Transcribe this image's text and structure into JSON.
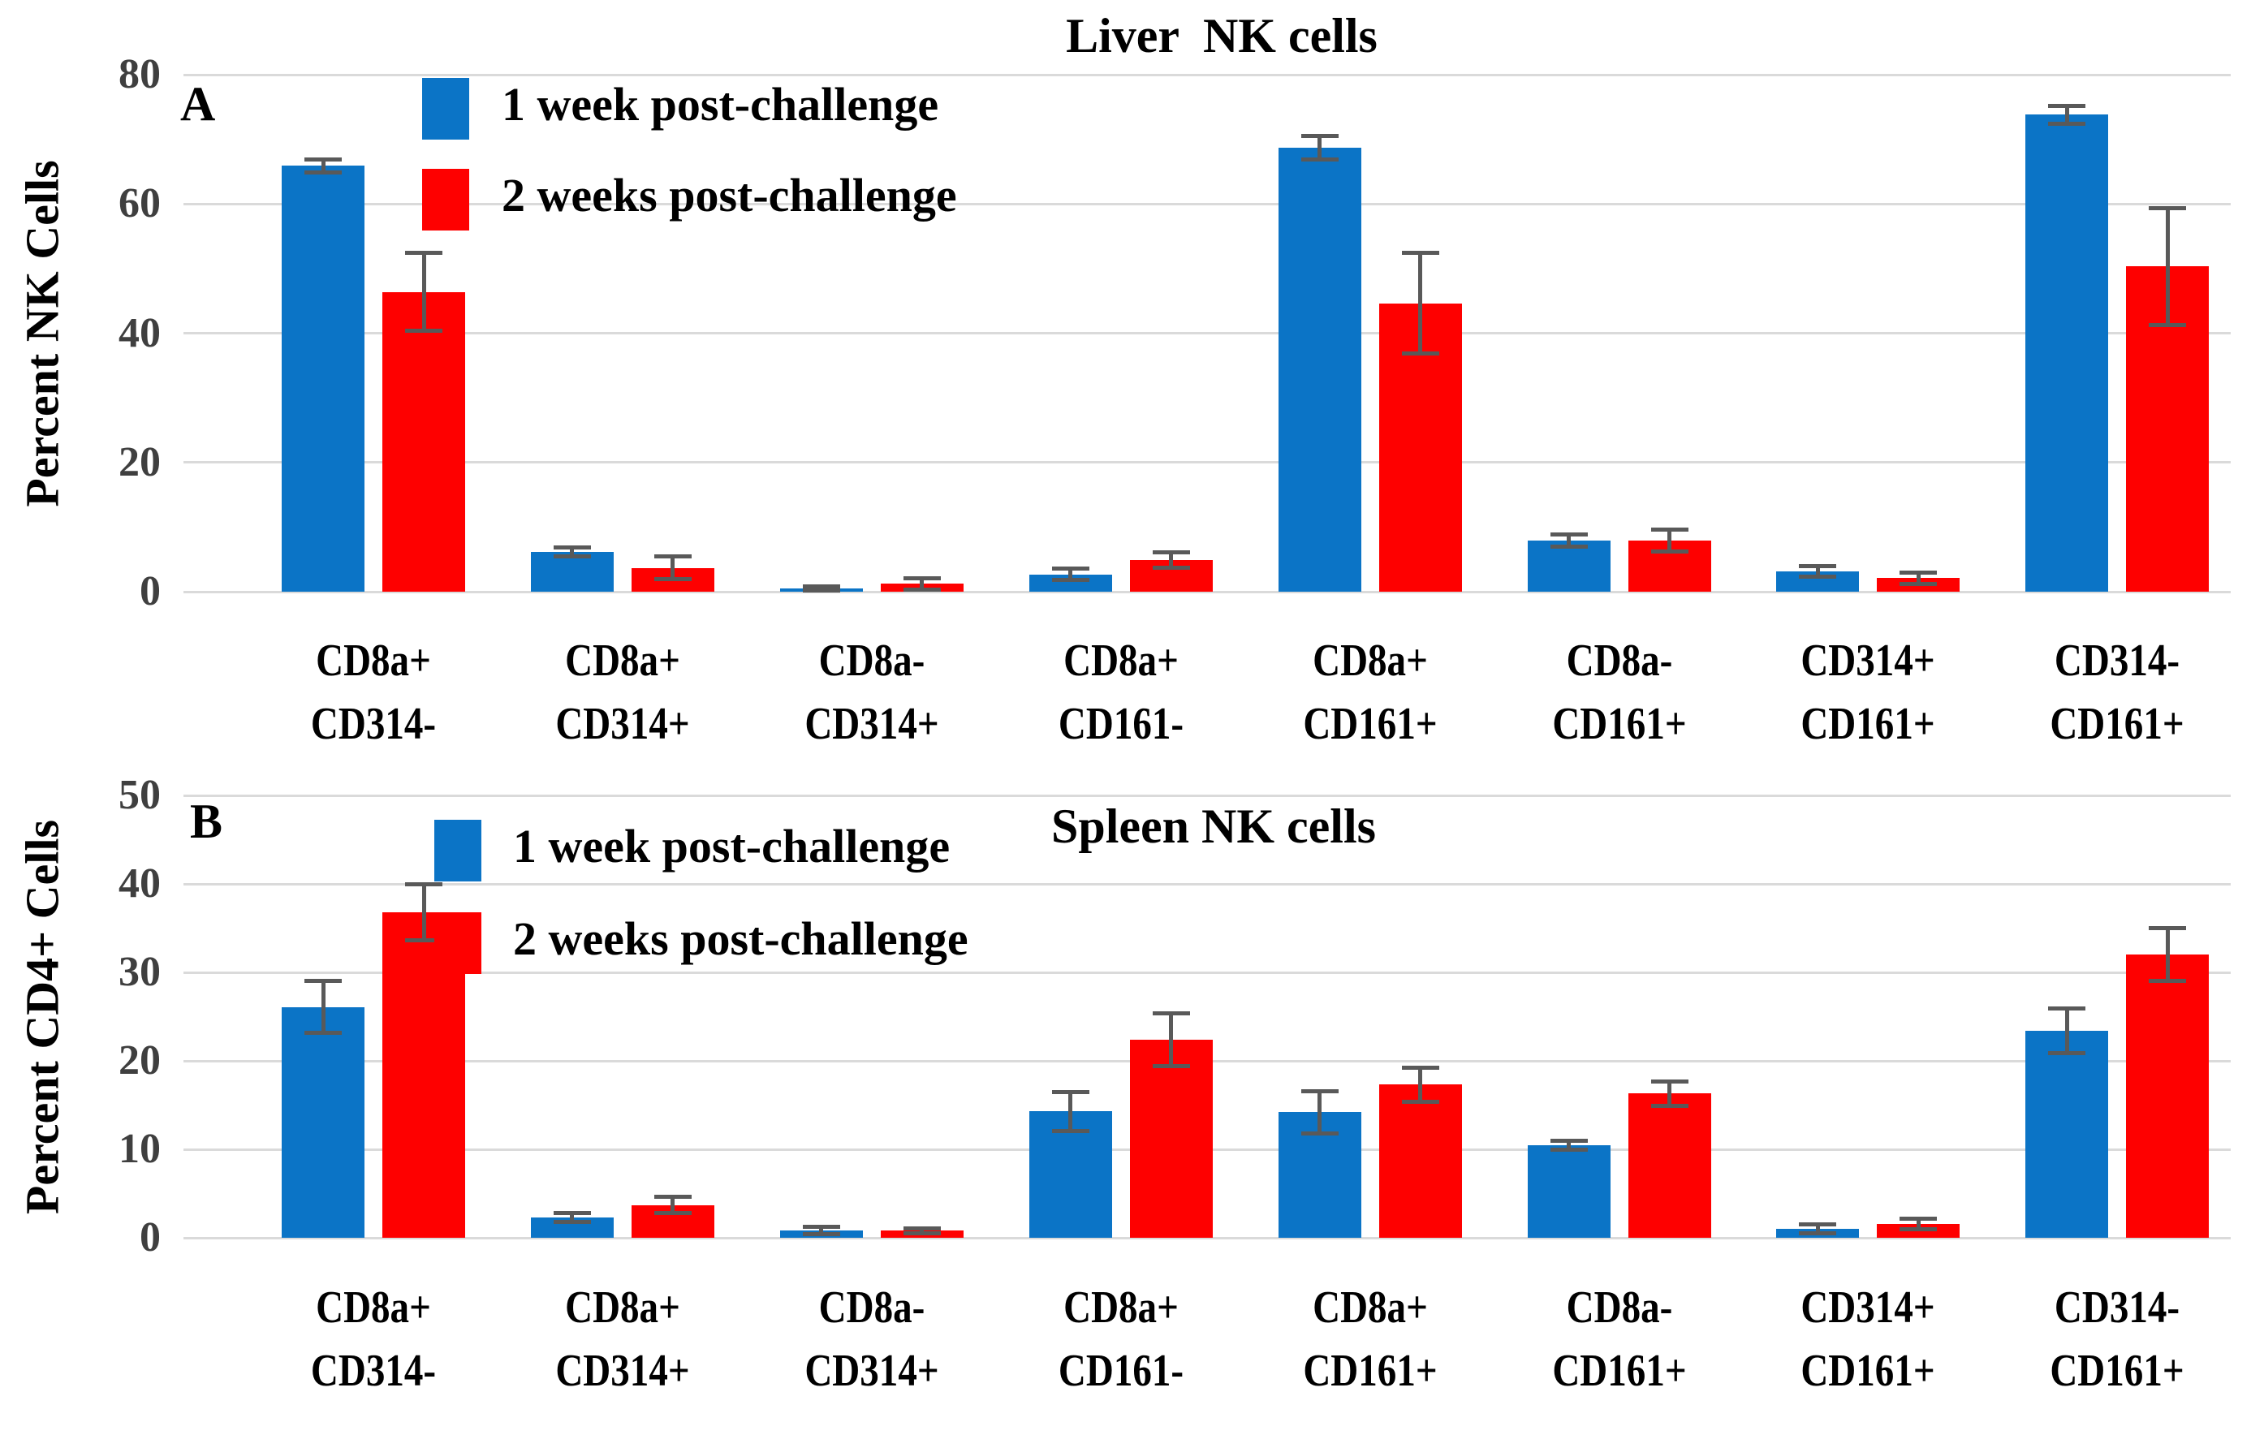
{
  "styles": {
    "background": "#FFFFFF",
    "blue": "#0B74C6",
    "red": "#FE0000",
    "error_bar_color": "#595959",
    "gridline_color": "#DADADA",
    "tick_label_color": "#3F3F3F",
    "text_color": "#000000"
  },
  "chart_data": [
    {
      "type": "bar",
      "panel": "A",
      "title": "Liver  NK cells",
      "ylabel": "Percent NK Cells",
      "xlabel": "",
      "ylim": [
        0,
        80
      ],
      "yticks": [
        0,
        20,
        40,
        60,
        80
      ],
      "grid": true,
      "legend_position": "top-left-inside",
      "categories": [
        [
          "CD8a+",
          "CD314-"
        ],
        [
          "CD8a+",
          "CD314+"
        ],
        [
          "CD8a-",
          "CD314+"
        ],
        [
          "CD8a+",
          "CD161-"
        ],
        [
          "CD8a+",
          "CD161+"
        ],
        [
          "CD8a-",
          "CD161+"
        ],
        [
          "CD314+",
          "CD161+"
        ],
        [
          "CD314-",
          "CD161+"
        ]
      ],
      "series": [
        {
          "name": "1 week post-challenge",
          "color": "#0B74C6",
          "values": [
            65.9,
            6.2,
            0.5,
            2.7,
            68.7,
            7.9,
            3.1,
            73.8
          ],
          "errors": [
            1.0,
            0.7,
            0.3,
            0.9,
            1.8,
            0.9,
            0.8,
            1.4
          ]
        },
        {
          "name": "2 weeks post-challenge",
          "color": "#FE0000",
          "values": [
            46.4,
            3.7,
            1.2,
            4.9,
            44.6,
            7.9,
            2.1,
            50.3
          ],
          "errors": [
            6.0,
            1.8,
            0.9,
            1.2,
            7.8,
            1.7,
            0.9,
            9.0
          ]
        }
      ]
    },
    {
      "type": "bar",
      "panel": "B",
      "title": "Spleen NK cells",
      "ylabel": "Percent CD4+ Cells",
      "xlabel": "",
      "ylim": [
        0,
        50
      ],
      "yticks": [
        0,
        10,
        20,
        30,
        40,
        50
      ],
      "grid": true,
      "legend_position": "top-left-inside",
      "categories": [
        [
          "CD8a+",
          "CD314-"
        ],
        [
          "CD8a+",
          "CD314+"
        ],
        [
          "CD8a-",
          "CD314+"
        ],
        [
          "CD8a+",
          "CD161-"
        ],
        [
          "CD8a+",
          "CD161+"
        ],
        [
          "CD8a-",
          "CD161+"
        ],
        [
          "CD314+",
          "CD161+"
        ],
        [
          "CD314-",
          "CD161+"
        ]
      ],
      "series": [
        {
          "name": "1 week post-challenge",
          "color": "#0B74C6",
          "values": [
            26.1,
            2.3,
            0.8,
            14.3,
            14.2,
            10.5,
            1.0,
            23.4
          ],
          "errors": [
            2.9,
            0.5,
            0.4,
            2.2,
            2.4,
            0.5,
            0.5,
            2.5
          ]
        },
        {
          "name": "2 weeks post-challenge",
          "color": "#FE0000",
          "values": [
            36.8,
            3.7,
            0.8,
            22.4,
            17.3,
            16.3,
            1.6,
            32.0
          ],
          "errors": [
            3.2,
            0.9,
            0.3,
            3.0,
            1.9,
            1.4,
            0.6,
            3.0
          ]
        }
      ]
    }
  ]
}
